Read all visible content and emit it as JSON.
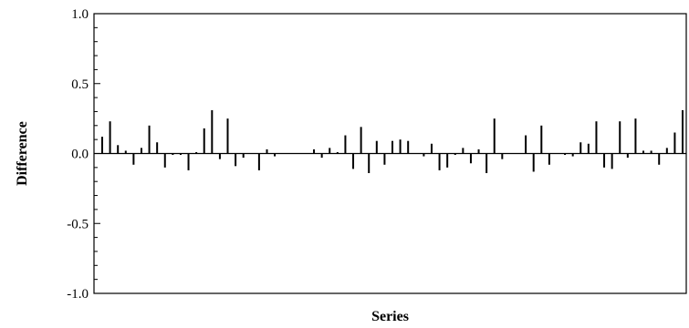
{
  "chart_data": {
    "type": "bar",
    "title": "",
    "xlabel": "Series",
    "ylabel": "Difference",
    "ylim": [
      -1.0,
      1.0
    ],
    "yticks": [
      {
        "value": 1.0,
        "label": "1.0"
      },
      {
        "value": 0.5,
        "label": "0.5"
      },
      {
        "value": 0.0,
        "label": "0.0"
      },
      {
        "value": -0.5,
        "label": "-0.5"
      },
      {
        "value": -1.0,
        "label": "-1.0"
      }
    ],
    "y_minor_step": 0.1,
    "grid": false,
    "legend": "none",
    "color": "#000000",
    "series": [
      {
        "values": [
          0.12,
          0.23,
          0.06,
          0.02,
          -0.08,
          0.04,
          0.2,
          0.08,
          -0.1,
          -0.01,
          -0.01,
          -0.12,
          0.01,
          0.18,
          0.31,
          -0.04,
          0.25,
          -0.09,
          -0.03,
          0.0,
          -0.12,
          0.03,
          -0.02,
          0.0,
          0.0,
          0.0,
          0.0,
          0.03,
          -0.03,
          0.04,
          0.01,
          0.13,
          -0.11,
          0.19,
          -0.14,
          0.09,
          -0.08,
          0.09,
          0.1,
          0.09,
          0.0,
          -0.02,
          0.07,
          -0.12,
          -0.1,
          -0.01,
          0.04,
          -0.07,
          0.03,
          -0.14,
          0.25,
          -0.04,
          0.0,
          0.0,
          0.13,
          -0.13,
          0.2,
          -0.08,
          0.0,
          -0.01,
          -0.02,
          0.08,
          0.07,
          0.23,
          -0.1,
          -0.11,
          0.23,
          -0.03,
          0.25,
          0.02,
          0.02,
          -0.08,
          0.04,
          0.15,
          0.31
        ]
      }
    ]
  }
}
